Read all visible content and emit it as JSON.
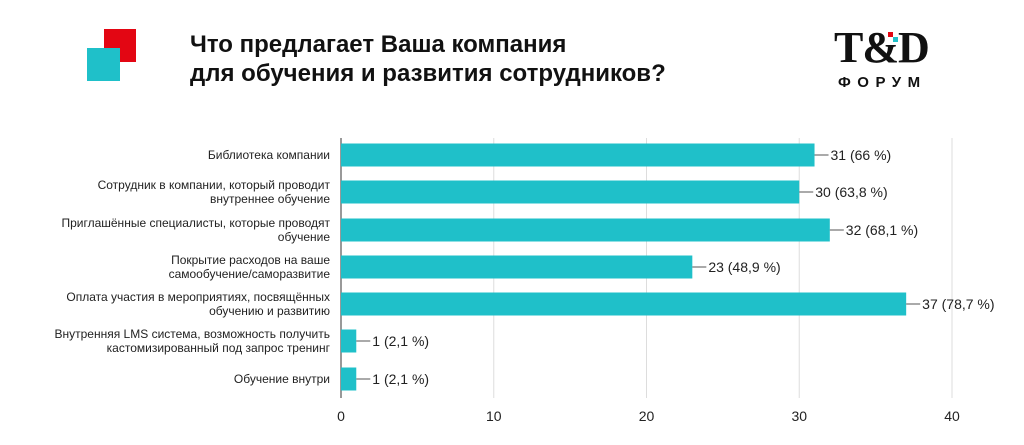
{
  "header": {
    "title_line1": "Что предлагает Ваша компания",
    "title_line2": "для обучения и развития сотрудников?",
    "logo_main": "T&D",
    "logo_sub": "ФОРУМ"
  },
  "colors": {
    "bar": "#1fc0c9",
    "deco_red": "#e30613",
    "deco_teal": "#1fc0c9",
    "axis": "#333333",
    "grid": "#dddddd",
    "text": "#222222"
  },
  "chart_data": {
    "type": "bar",
    "orientation": "horizontal",
    "categories": [
      [
        "Библиотека компании"
      ],
      [
        "Сотрудник в компании, который проводит",
        "внутреннее обучение"
      ],
      [
        "Приглашённые специалисты, которые проводят",
        "обучение"
      ],
      [
        "Покрытие расходов на ваше",
        "самообучение/саморазвитие"
      ],
      [
        "Оплата участия в мероприятиях, посвящённых",
        "обучению и развитию"
      ],
      [
        "Внутренняя LMS система, возможность получить",
        "кастомизированный под запрос тренинг"
      ],
      [
        "Обучение внутри"
      ]
    ],
    "values": [
      31,
      30,
      32,
      23,
      37,
      1,
      1
    ],
    "data_labels": [
      "31 (66 %)",
      "30 (63,8 %)",
      "32 (68,1 %)",
      "23 (48,9 %)",
      "37 (78,7 %)",
      "1 (2,1 %)",
      "1 (2,1 %)"
    ],
    "xlim": [
      0,
      40
    ],
    "xticks": [
      "0",
      "10",
      "20",
      "30",
      "40"
    ],
    "grid": true
  }
}
